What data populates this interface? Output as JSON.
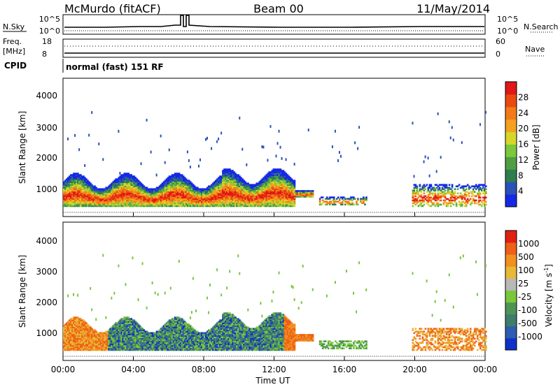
{
  "header": {
    "station": "McMurdo (fitACF)",
    "beam": "Beam 00",
    "date": "11/May/2014"
  },
  "top_panels": {
    "nsky_label": "N.Sky",
    "nsearch_label": "N.Search",
    "nsky_ticks": [
      "10^5",
      "10^0"
    ],
    "nsearch_ticks": [
      "10^5",
      "10^0"
    ],
    "freq_label_1": "Freq.",
    "freq_label_2": "[MHz]",
    "freq_ticks": [
      "18",
      "8"
    ],
    "nave_label": "Nave",
    "nave_ticks": [
      "60",
      "0"
    ],
    "cpid_label": "CPID",
    "cpid_value": "normal (fast) 151 RF"
  },
  "chart_data": [
    {
      "type": "heatmap",
      "name": "power",
      "ylabel": "Slant Range [km]",
      "yticks": [
        "4000",
        "3000",
        "2000",
        "1000"
      ],
      "ylim": [
        180,
        4600
      ],
      "colorbar_label": "Power [dB]",
      "colorbar_ticks": [
        "28",
        "24",
        "20",
        "16",
        "12",
        "8",
        "4"
      ],
      "colors": [
        "#1428e6",
        "#2a52b8",
        "#2e7d4e",
        "#4f9e44",
        "#7ac93a",
        "#d6d62a",
        "#f4a020",
        "#f27a18",
        "#ea4a10",
        "#e01818"
      ]
    },
    {
      "type": "heatmap",
      "name": "velocity",
      "ylabel": "Slant Range [km]",
      "yticks": [
        "4000",
        "3000",
        "2000",
        "1000"
      ],
      "ylim": [
        180,
        4600
      ],
      "colorbar_label": "Velocity [m s",
      "colorbar_label_sup": "-1",
      "colorbar_label_end": "]",
      "colorbar_ticks": [
        "1000",
        "500",
        "100",
        "25",
        "-25",
        "-100",
        "-500",
        "-1000"
      ],
      "colors": [
        "#1030c8",
        "#2e5cb0",
        "#3f7c6c",
        "#4e9455",
        "#79c83c",
        "#b8b8b8",
        "#e8b838",
        "#f09020",
        "#ee6018",
        "#e02010"
      ]
    }
  ],
  "x_axis": {
    "ticks": [
      "00:00",
      "04:00",
      "08:00",
      "12:00",
      "16:00",
      "20:00",
      "00:00"
    ],
    "label": "Time UT"
  }
}
